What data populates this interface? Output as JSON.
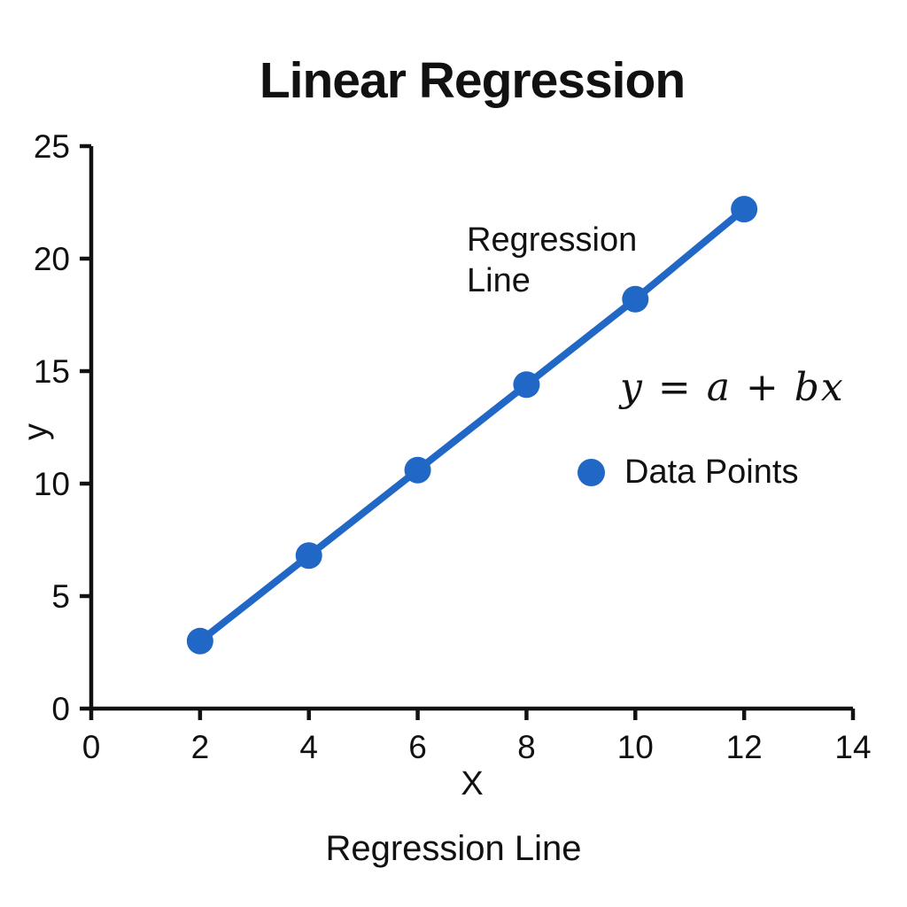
{
  "chart_data": {
    "type": "line",
    "title": "Linear Regression",
    "xlabel": "X",
    "ylabel": "y",
    "caption": "Regression Line",
    "annotation_lines": [
      "Regression",
      "Line"
    ],
    "formula": "y = a + bx",
    "legend": [
      {
        "label": "Data Points",
        "marker": "circle"
      }
    ],
    "legend_position": "center-right",
    "series": [
      {
        "name": "Regression Line",
        "x": [
          2,
          4,
          6,
          8,
          10,
          12
        ],
        "y": [
          3.0,
          6.8,
          10.6,
          14.4,
          18.2,
          22.2
        ]
      }
    ],
    "xlim": [
      0,
      14
    ],
    "ylim": [
      0,
      25
    ],
    "xticks": [
      0,
      2,
      4,
      6,
      8,
      10,
      12,
      14
    ],
    "yticks": [
      0,
      5,
      10,
      15,
      20,
      25
    ],
    "grid": false,
    "colors": {
      "line": "#2167C5",
      "marker": "#2167C5",
      "text": "#111111",
      "axis": "#111111"
    }
  }
}
